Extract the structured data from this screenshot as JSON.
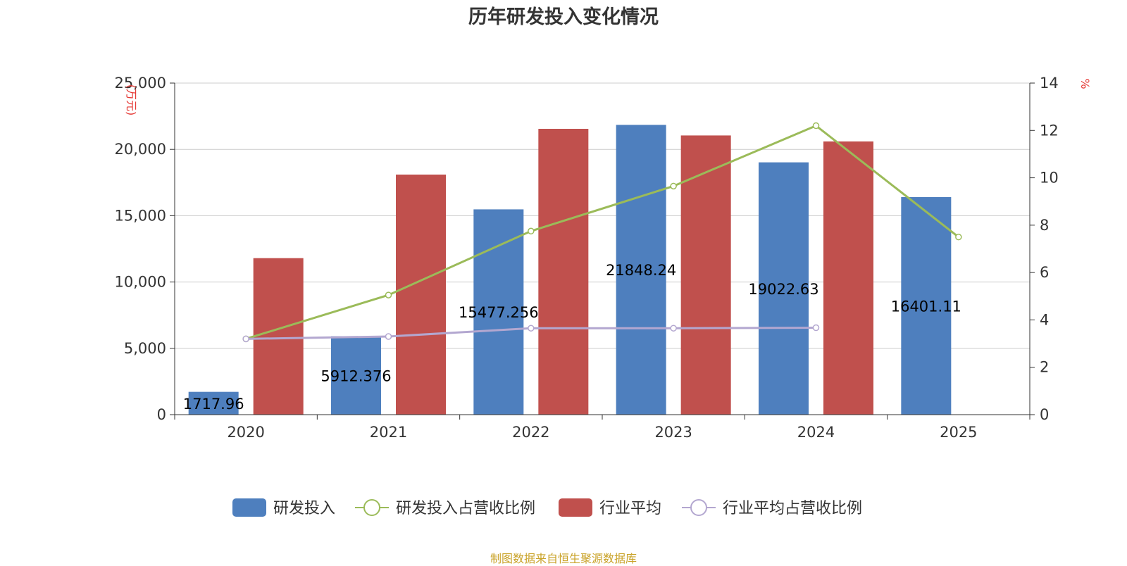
{
  "title": "历年研发投入变化情况",
  "source": "制图数据来自恒生聚源数据库",
  "colors": {
    "rd": "#4e7fbe",
    "industry": "#c0504d",
    "rd_ratio": "#9bbb59",
    "industry_ratio": "#b3a7d0",
    "unit": "#e53935",
    "axis": "#333333",
    "grid": "#cccccc"
  },
  "chart_data": {
    "type": "bar",
    "categories": [
      "2020",
      "2021",
      "2022",
      "2023",
      "2024",
      "2025"
    ],
    "y_left": {
      "unit_label": "(万元)",
      "min": 0,
      "max": 25000,
      "ticks": [
        0,
        5000,
        10000,
        15000,
        20000,
        25000
      ],
      "tick_labels": [
        "0",
        "5,000",
        "10,000",
        "15,000",
        "20,000",
        "25,000"
      ]
    },
    "y_right": {
      "unit_label": "%",
      "min": 0,
      "max": 14,
      "ticks": [
        0,
        2,
        4,
        6,
        8,
        10,
        12,
        14
      ]
    },
    "grid": true,
    "legend_position": "bottom",
    "series": [
      {
        "name": "研发投入",
        "type": "bar",
        "axis": "left",
        "values": [
          1717.96,
          5912.376,
          15477.256,
          21848.24,
          19022.63,
          16401.11
        ],
        "labels": [
          "1717.96",
          "5912.376",
          "15477.256",
          "21848.24",
          "19022.63",
          "16401.11"
        ]
      },
      {
        "name": "研发投入占营收比例",
        "type": "line",
        "axis": "right",
        "values": [
          3.2,
          5.05,
          7.75,
          9.65,
          12.2,
          7.5
        ]
      },
      {
        "name": "行业平均",
        "type": "bar",
        "axis": "left",
        "values": [
          11800,
          18100,
          21550,
          21050,
          20600,
          null
        ]
      },
      {
        "name": "行业平均占营收比例",
        "type": "line",
        "axis": "right",
        "values": [
          3.2,
          3.3,
          3.65,
          3.65,
          3.67,
          null
        ]
      }
    ]
  }
}
